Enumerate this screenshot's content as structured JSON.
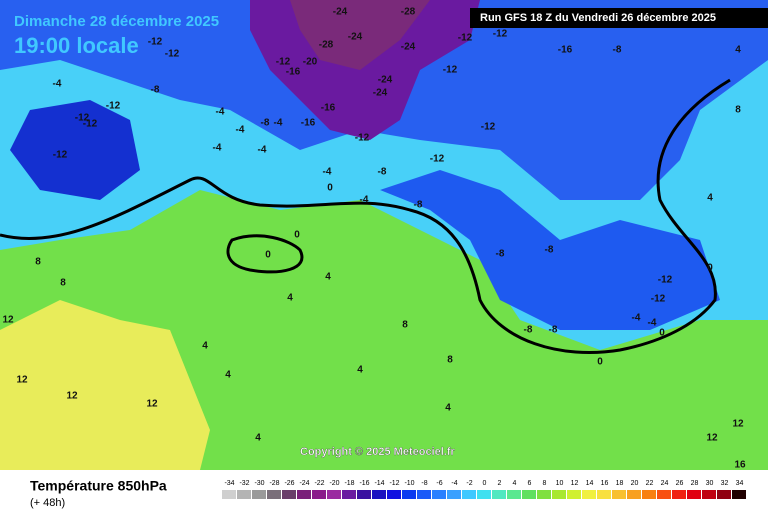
{
  "header": {
    "date": "Dimanche 28 décembre 2025",
    "time": "19:00 locale",
    "run": "Run GFS 18 Z du Vendredi 26 décembre 2025"
  },
  "copyright": "Copyright © 2025 Meteociel.fr",
  "footer": {
    "title": "Température 850hPa",
    "lead": "(+ 48h)"
  },
  "scale": {
    "ticks": [
      -34,
      -32,
      -30,
      -28,
      -26,
      -24,
      -22,
      -20,
      -18,
      -16,
      -14,
      -12,
      -10,
      -8,
      -6,
      -4,
      -2,
      0,
      2,
      4,
      6,
      8,
      10,
      12,
      14,
      16,
      18,
      20,
      22,
      24,
      26,
      28,
      30,
      32,
      34
    ],
    "colors": [
      "#cfcfcf",
      "#b4b4b4",
      "#9a9a9a",
      "#7a6f7a",
      "#6a3f6a",
      "#7a1f7a",
      "#8a1a8a",
      "#9a2aa0",
      "#6a1aa0",
      "#3a10a0",
      "#1a10c0",
      "#1010e0",
      "#0a3af0",
      "#1a5af8",
      "#2a80ff",
      "#3aa0ff",
      "#40c8ff",
      "#40e0f0",
      "#50e8c0",
      "#5ae890",
      "#60e060",
      "#80e040",
      "#a8e830",
      "#d0f030",
      "#f0f040",
      "#f8e040",
      "#f8c030",
      "#f8a020",
      "#f88010",
      "#f85010",
      "#f02010",
      "#e00010",
      "#c00010",
      "#900010",
      "#200000"
    ]
  },
  "labels": [
    -12,
    -12,
    -4,
    -8,
    -12,
    -12,
    -12,
    -12,
    -4,
    -4,
    -4,
    -4,
    -8,
    -4,
    -16,
    -16,
    -20,
    -16,
    -12,
    -28,
    -24,
    -24,
    -28,
    -24,
    -24,
    -24,
    -12,
    -12,
    -12,
    -16,
    -8,
    -12,
    -12,
    -12,
    -8,
    -4,
    0,
    -4,
    -8,
    -8,
    -8,
    -8,
    -8,
    -12,
    -12,
    -4,
    -4,
    0,
    0,
    0,
    4,
    4,
    4,
    4,
    4,
    4,
    4,
    8,
    8,
    8,
    8,
    12,
    12,
    12,
    12,
    12,
    12,
    16,
    0,
    0,
    4,
    8,
    4
  ]
}
